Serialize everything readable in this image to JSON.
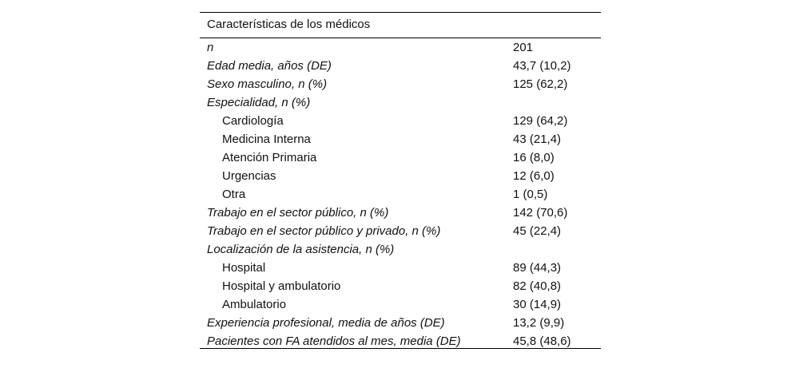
{
  "table": {
    "header": "Características de los médicos",
    "rows": [
      {
        "label": "n",
        "value": "201"
      },
      {
        "label": "Edad media, años (DE)",
        "value": "43,7 (10,2)"
      },
      {
        "label": "Sexo masculino, n (%)",
        "value": "125 (62,2)"
      },
      {
        "label": "Especialidad, n (%)",
        "items": [
          [
            "Cardiología",
            "129 (64,2)"
          ],
          [
            "Medicina Interna",
            "43 (21,4)"
          ],
          [
            "Atención Primaria",
            "16 (8,0)"
          ],
          [
            "Urgencias",
            "12 (6,0)"
          ],
          [
            "Otra",
            "1 (0,5)"
          ]
        ]
      },
      {
        "label": "Trabajo en el sector público, n (%)",
        "value": "142 (70,6)"
      },
      {
        "label": "Trabajo en el sector público y privado, n (%)",
        "value": "45 (22,4)"
      },
      {
        "label": "Localización de la asistencia, n (%)",
        "items": [
          [
            "Hospital",
            "89 (44,3)"
          ],
          [
            "Hospital y ambulatorio",
            "82 (40,8)"
          ],
          [
            "Ambulatorio",
            "30 (14,9)"
          ]
        ]
      },
      {
        "label": "Experiencia profesional, media de años (DE)",
        "value": "13,2 (9,9)"
      },
      {
        "label": "Pacientes con FA atendidos al mes, media (DE)",
        "value": "45,8 (48,6)"
      }
    ]
  }
}
